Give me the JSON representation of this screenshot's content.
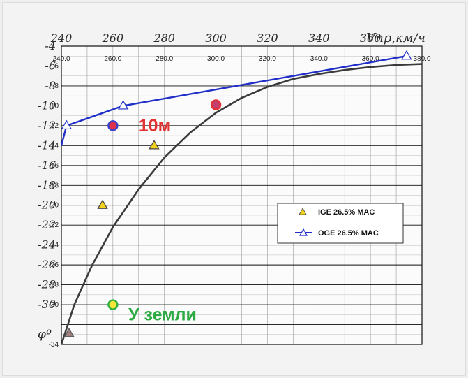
{
  "chart_data": {
    "type": "line",
    "xlabel": "Vпр,км/ч",
    "ylabel": "φº",
    "xlim": [
      240,
      380
    ],
    "ylim": [
      -34,
      -4
    ],
    "grid": true,
    "legend_position": "right-middle",
    "x_ticks_scanned": [
      "240",
      "260",
      "280",
      "300",
      "320",
      "340",
      "360"
    ],
    "y_ticks_scanned": [
      "-4",
      "-6",
      "-8",
      "-10",
      "-12",
      "-14",
      "-16",
      "-18",
      "-20",
      "-22",
      "-24",
      "-26",
      "-28",
      "-30"
    ],
    "x_ticks_digital": [
      "240.0",
      "260.0",
      "280.0",
      "300.0",
      "320.0",
      "340.0",
      "360.0",
      "380.0"
    ],
    "y_ticks_digital": [
      "-6",
      "-8",
      "-10",
      "-12",
      "-14",
      "-16",
      "-18",
      "-20",
      "-22",
      "-24",
      "-26",
      "-28",
      "-30",
      "-34"
    ],
    "series": [
      {
        "name": "IGE 26.5% MAC",
        "kind": "scatter-triangle",
        "color": "#f2d21c",
        "x": [
          256,
          276
        ],
        "y": [
          -20,
          -14
        ]
      },
      {
        "name": "OGE 26.5% MAC",
        "kind": "line-triangle",
        "color": "#1f2fc8",
        "x": [
          240,
          242,
          264,
          374
        ],
        "y": [
          -14,
          -12,
          -10,
          -5
        ]
      },
      {
        "kind": "curve",
        "color": "#3b3b3b",
        "x": [
          240,
          245,
          252,
          260,
          270,
          280,
          290,
          300,
          310,
          320,
          330,
          340,
          350,
          360,
          370,
          380
        ],
        "y": [
          -34,
          -30,
          -26,
          -22.2,
          -18.4,
          -15.2,
          -12.7,
          -10.7,
          -9.2,
          -8.1,
          -7.3,
          -6.8,
          -6.4,
          -6.1,
          -5.9,
          -5.8
        ]
      }
    ],
    "points": [
      {
        "x": 260,
        "y": -12,
        "color": "#e0324b",
        "edge": "#3a42c8"
      },
      {
        "x": 300,
        "y": -9.9,
        "color": "#c04070",
        "edge": "#e63030"
      },
      {
        "x": 260,
        "y": -30,
        "color": "#f6e63a",
        "edge": "#2fb040"
      },
      {
        "x": 243,
        "y": -32.9,
        "color": "#a07f7f",
        "edge": "#555555"
      }
    ],
    "annotations": [
      {
        "text": "10м",
        "x": 270,
        "y": -12,
        "color": "#e23232"
      },
      {
        "text": "У земли",
        "x": 266,
        "y": -31,
        "color": "#2cab43"
      }
    ]
  }
}
